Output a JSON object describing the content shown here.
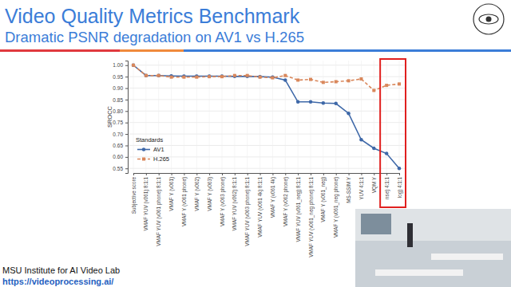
{
  "header": {
    "title": "Video Quality Metrics Benchmark",
    "subtitle": "Dramatic PSNR degradation on AV1 vs H.265"
  },
  "footer": {
    "org": "MSU Institute for AI Video Lab",
    "url": "https://videoprocessing.ai/"
  },
  "chart_data": {
    "type": "line",
    "y_label": "SROCC",
    "legend_title": "Standards",
    "legend": "lower left",
    "grid": true,
    "categories": [
      "Subjective score",
      "VMAF YUV (v061) 8:1:1",
      "VMAF YUV (v061 phone) 8:1:1",
      "VMAF Y (v061)",
      "VMAF Y (v061 phone)",
      "VMAF Y (v062)",
      "VMAF Y (v063)",
      "VMAF Y (v063 phone)",
      "VMAF YUV (v062) 8:1:1",
      "VMAF YUV (v063 phone) 8:1:1",
      "VMAF YUV (v061 4k) 8:1:1",
      "VMAF Y (v061 4k)",
      "VMAF Y (v062 phone)",
      "VMAF YUV (v061_neg) 8:1:1",
      "VMAF YUV (v061_neg phone) 8:1:1",
      "VMAF Y (v061_neg)",
      "VMAF Y (v061_neg phone)",
      "MS-SSIM Y",
      "YUV 4:1:1",
      "VQM Y",
      "nse) 4:1:1",
      "log) 4:1:1"
    ],
    "series": [
      {
        "name": "AV1",
        "color": "#3e68a8",
        "marker": "circle",
        "line_style": "solid",
        "values": [
          1.0,
          0.955,
          0.955,
          0.953,
          0.952,
          0.952,
          0.952,
          0.952,
          0.951,
          0.951,
          0.95,
          0.948,
          0.935,
          0.84,
          0.84,
          0.835,
          0.833,
          0.79,
          0.675,
          0.638,
          0.615,
          0.55
        ]
      },
      {
        "name": "H.265",
        "color": "#d9875b",
        "marker": "square",
        "line_style": "dashed",
        "values": [
          1.0,
          0.955,
          0.955,
          0.948,
          0.948,
          0.948,
          0.95,
          0.95,
          0.955,
          0.955,
          0.948,
          0.945,
          0.955,
          0.935,
          0.938,
          0.925,
          0.928,
          0.932,
          0.94,
          0.89,
          0.912,
          0.918
        ]
      }
    ],
    "ylim": [
      0.53,
      1.02
    ],
    "yticks": [
      0.55,
      {
        "value": 0.6,
        "label": "0.60"
      },
      0.65,
      {
        "value": 0.7,
        "label": "0.70"
      },
      0.75,
      {
        "value": 0.8,
        "label": "0.80"
      },
      0.85,
      {
        "value": 0.9,
        "label": "0.90"
      },
      0.95,
      {
        "value": 1,
        "label": "1.00"
      }
    ]
  }
}
